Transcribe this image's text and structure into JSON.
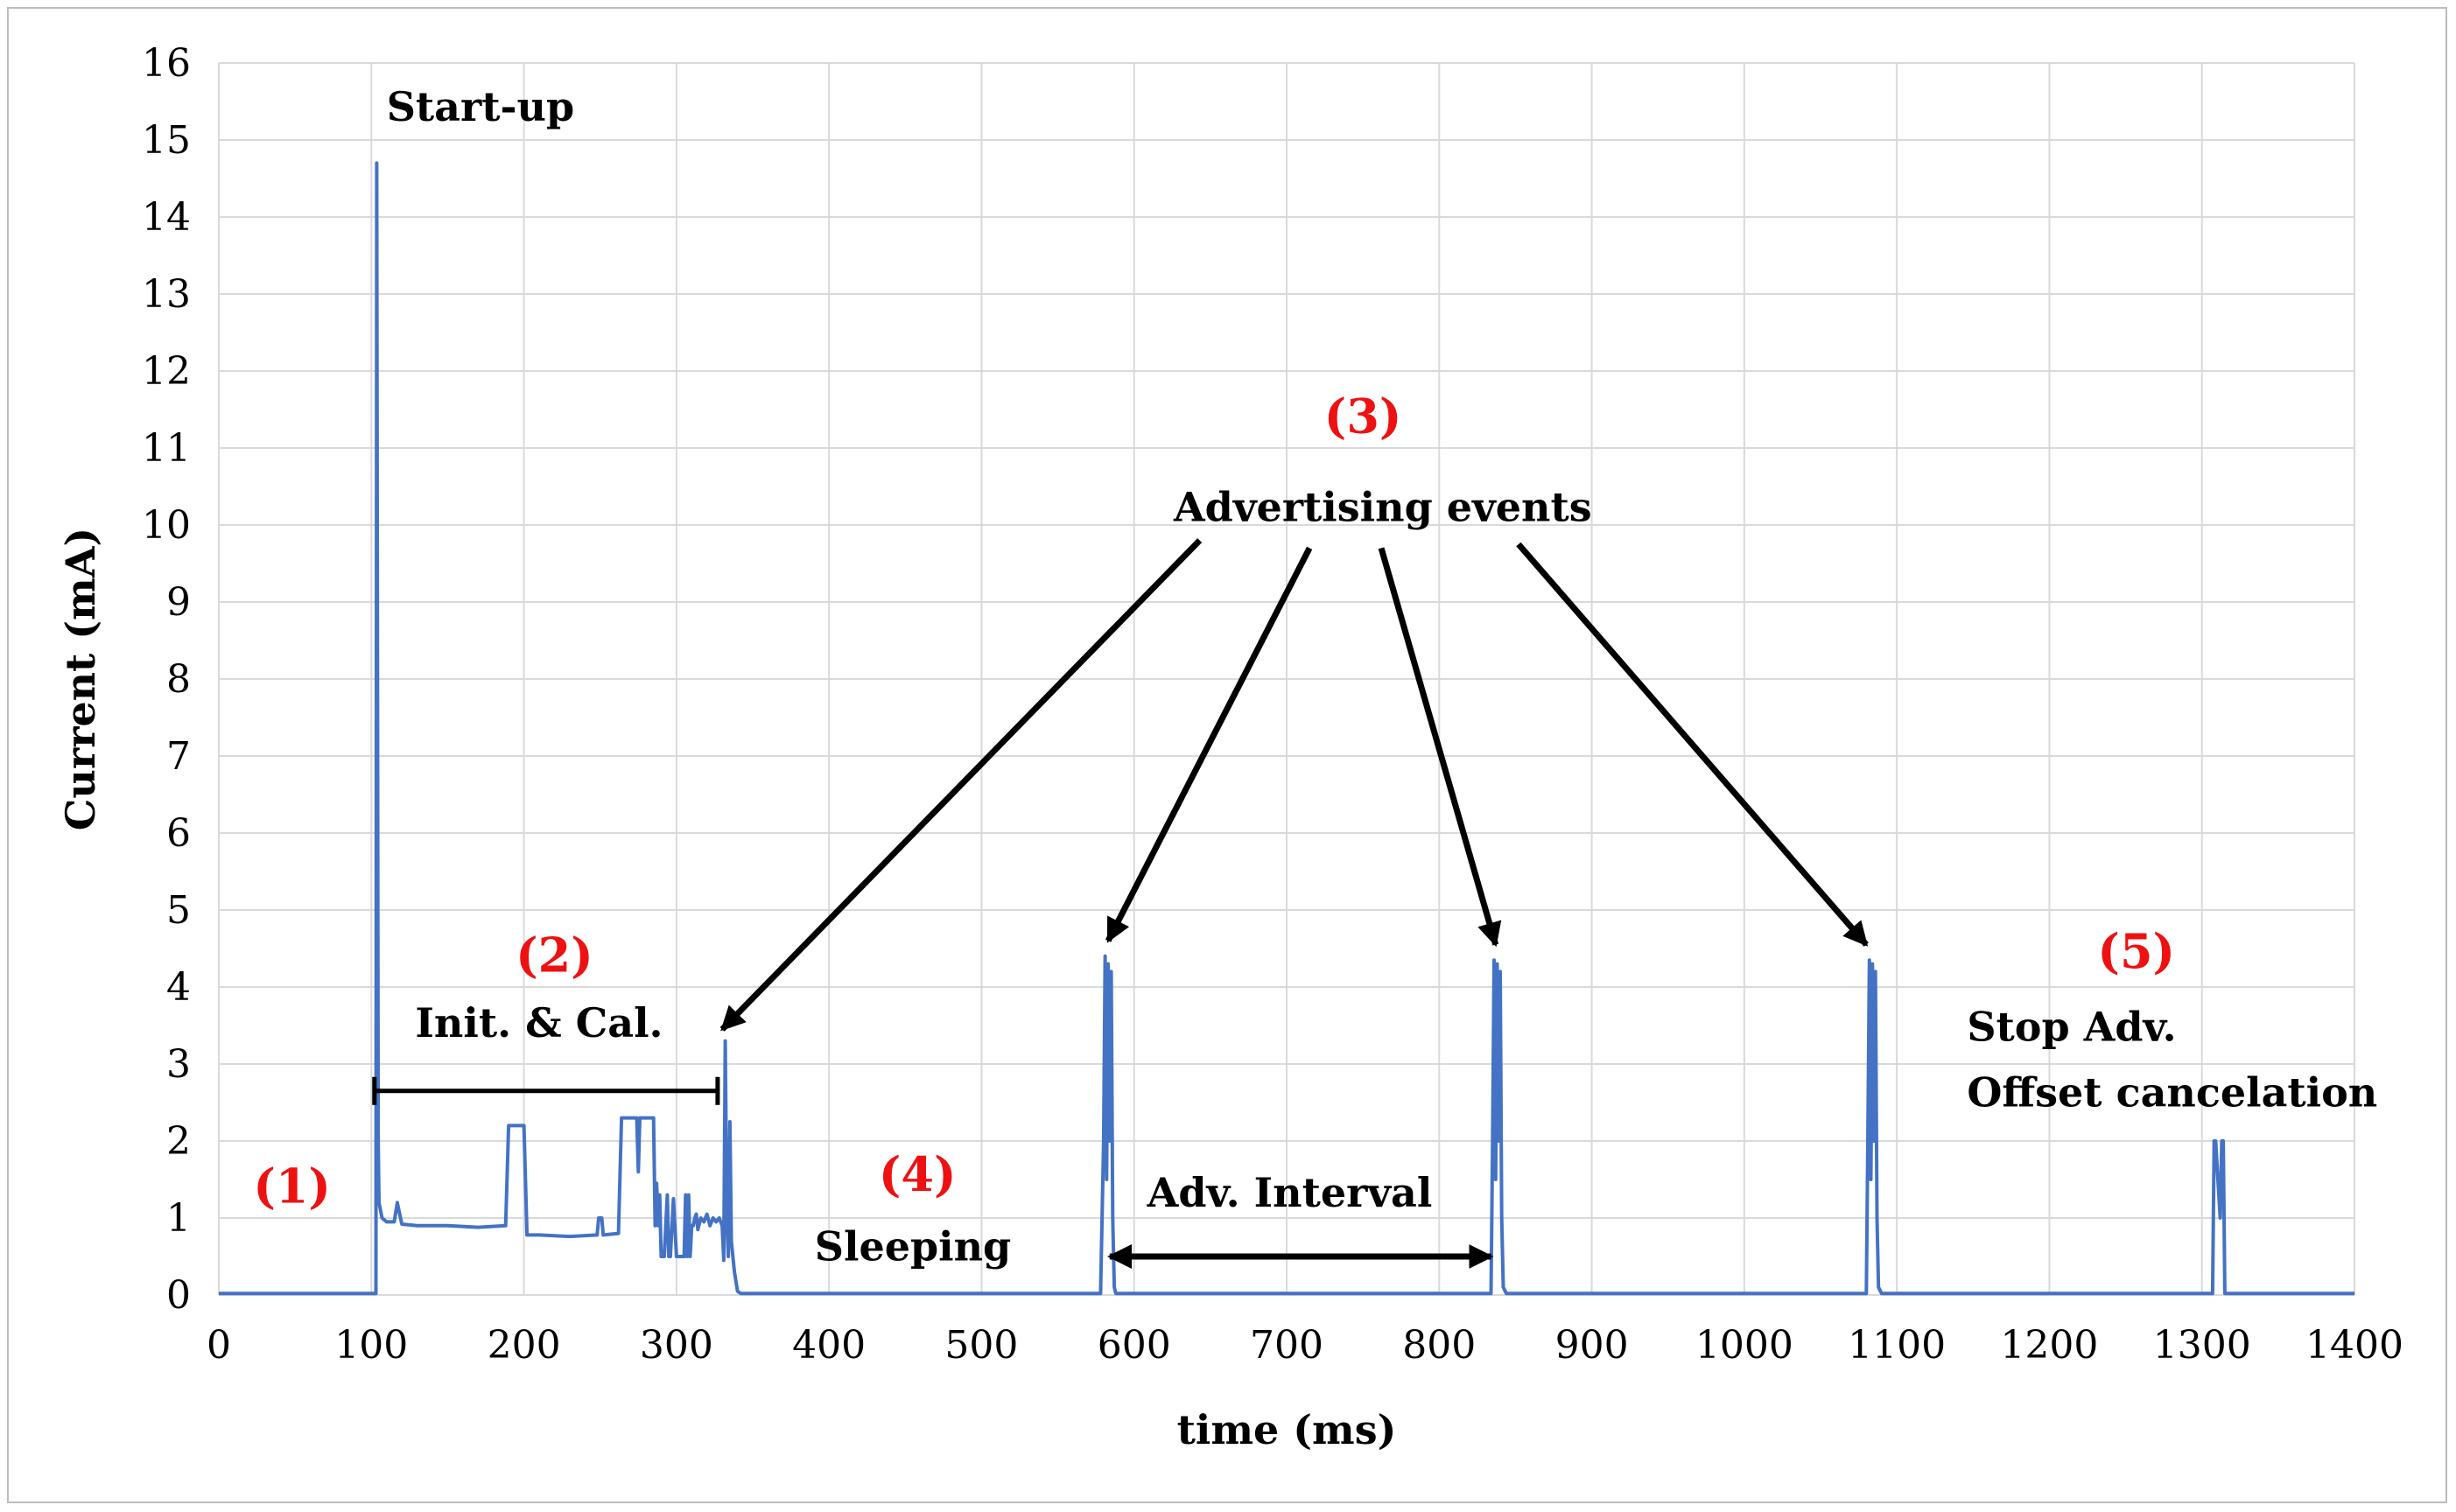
{
  "chart_data": {
    "type": "line",
    "xlabel": "time (ms)",
    "ylabel": "Current (mA)",
    "xlim": [
      0,
      1400
    ],
    "ylim": [
      0,
      16
    ],
    "x_ticks": [
      0,
      100,
      200,
      300,
      400,
      500,
      600,
      700,
      800,
      900,
      1000,
      1100,
      1200,
      1300,
      1400
    ],
    "y_ticks": [
      0,
      1,
      2,
      3,
      4,
      5,
      6,
      7,
      8,
      9,
      10,
      11,
      12,
      13,
      14,
      15,
      16
    ],
    "grid": true,
    "series_color": "#4472c4",
    "series": [
      {
        "x": [
          0,
          103,
          103.5,
          104.5,
          105,
          107,
          110,
          115,
          117,
          120,
          130,
          150,
          170,
          188,
          190,
          192,
          200,
          202,
          210,
          230,
          248,
          249,
          251,
          252,
          262,
          264,
          266,
          270,
          274,
          275,
          276,
          280,
          285,
          286,
          287,
          288,
          289,
          290,
          292,
          294,
          295,
          296,
          298,
          300,
          305,
          306,
          307,
          308,
          309,
          310,
          311,
          312,
          313,
          314,
          316,
          318,
          320,
          322,
          324,
          326,
          328,
          330,
          331,
          332,
          333,
          334,
          335,
          336,
          337,
          338,
          340,
          342,
          360,
          400,
          500,
          578,
          580,
          581,
          582,
          583,
          584,
          585,
          586,
          587,
          588,
          590,
          830,
          834,
          835,
          836,
          837,
          838,
          839,
          840,
          841,
          842,
          844,
          1076,
          1080,
          1081,
          1082,
          1083,
          1084,
          1085,
          1086,
          1087,
          1088,
          1090,
          1300,
          1306,
          1307,
          1308,
          1309,
          1312,
          1313,
          1314,
          1315,
          1320,
          1400
        ],
        "y": [
          0.02,
          0.02,
          14.7,
          2.0,
          1.2,
          1.0,
          0.95,
          0.95,
          1.2,
          0.92,
          0.9,
          0.9,
          0.88,
          0.9,
          2.2,
          2.2,
          2.2,
          0.78,
          0.78,
          0.76,
          0.78,
          1.0,
          1.0,
          0.78,
          0.8,
          2.3,
          2.3,
          2.3,
          2.3,
          1.6,
          2.3,
          2.3,
          2.3,
          0.9,
          1.45,
          0.9,
          1.3,
          0.5,
          0.5,
          1.3,
          0.5,
          0.5,
          1.25,
          0.5,
          0.5,
          1.3,
          0.5,
          1.3,
          0.5,
          0.9,
          0.9,
          1.0,
          1.05,
          0.85,
          1.0,
          0.95,
          1.05,
          0.9,
          1.0,
          0.95,
          1.0,
          0.9,
          0.45,
          3.3,
          1.0,
          0.5,
          2.25,
          0.7,
          0.5,
          0.3,
          0.05,
          0.02,
          0.02,
          0.02,
          0.02,
          0.02,
          2.0,
          4.4,
          1.5,
          4.3,
          2.0,
          4.2,
          1.0,
          0.1,
          0.02,
          0.02,
          0.02,
          0.02,
          2.0,
          4.35,
          1.5,
          4.3,
          2.0,
          4.2,
          1.0,
          0.1,
          0.02,
          0.02,
          0.02,
          2.0,
          4.35,
          1.5,
          4.3,
          2.0,
          4.2,
          1.0,
          0.1,
          0.02,
          0.02,
          0.02,
          0.02,
          2.0,
          2.0,
          1.0,
          2.0,
          2.0,
          0.02,
          0.02,
          0.02
        ]
      }
    ],
    "annotations": [
      {
        "text": "Start-up",
        "x": 110,
        "y": 15.25,
        "style": "ann",
        "anchor": "start"
      },
      {
        "text": "(1)",
        "x": 48,
        "y": 1.2,
        "style": "ann-red",
        "anchor": "middle"
      },
      {
        "text": "(2)",
        "x": 220,
        "y": 4.2,
        "style": "ann-red",
        "anchor": "middle"
      },
      {
        "text": "Init. & Cal.",
        "x": 210,
        "y": 3.35,
        "style": "ann",
        "anchor": "middle"
      },
      {
        "text": "(3)",
        "x": 750,
        "y": 11.2,
        "style": "ann-red",
        "anchor": "middle"
      },
      {
        "text": "Advertising events",
        "x": 763,
        "y": 10.05,
        "style": "ann",
        "anchor": "middle"
      },
      {
        "text": "(4)",
        "x": 458,
        "y": 1.35,
        "style": "ann-red",
        "anchor": "middle"
      },
      {
        "text": "Sleeping",
        "x": 455,
        "y": 0.45,
        "style": "ann",
        "anchor": "middle"
      },
      {
        "text": "Adv. Interval",
        "x": 702,
        "y": 1.15,
        "style": "ann",
        "anchor": "middle"
      },
      {
        "text": "(5)",
        "x": 1257,
        "y": 4.25,
        "style": "ann-red",
        "anchor": "middle"
      },
      {
        "text": "Stop Adv.",
        "x": 1146,
        "y": 3.3,
        "style": "ann",
        "anchor": "start"
      },
      {
        "text": "Offset cancelation",
        "x": 1146,
        "y": 2.45,
        "style": "ann",
        "anchor": "start"
      }
    ],
    "arrows": [
      {
        "from": [
          643,
          9.8
        ],
        "to": [
          330,
          3.45
        ]
      },
      {
        "from": [
          715,
          9.7
        ],
        "to": [
          583,
          4.6
        ]
      },
      {
        "from": [
          762,
          9.7
        ],
        "to": [
          837,
          4.55
        ]
      },
      {
        "from": [
          852,
          9.75
        ],
        "to": [
          1080,
          4.55
        ]
      },
      {
        "from": [
          584,
          0.5
        ],
        "to": [
          834,
          0.5
        ],
        "double": true
      }
    ],
    "brackets": [
      {
        "from": [
          102,
          2.65
        ],
        "to": [
          327,
          2.65
        ]
      }
    ]
  }
}
